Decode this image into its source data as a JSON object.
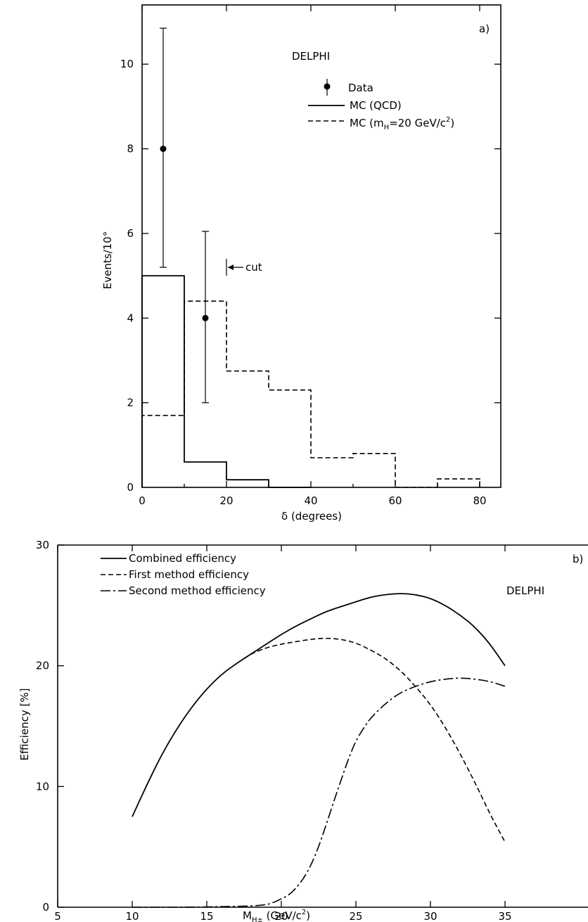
{
  "chart_data": [
    {
      "type": "histogram",
      "experiment_label": "DELPHI",
      "panel_label": "a)",
      "xlabel": "δ (degrees)",
      "ylabel": "Events/10°",
      "xlim": [
        0,
        85
      ],
      "ylim": [
        0,
        11.4
      ],
      "xticks": [
        0,
        20,
        40,
        60,
        80
      ],
      "yticks": [
        2,
        4,
        6,
        8,
        10
      ],
      "legend": {
        "placement": "top-right",
        "entries": [
          {
            "label": "Data",
            "style": "marker"
          },
          {
            "label": "MC (QCD)",
            "style": "solid"
          },
          {
            "label": "MC (m",
            "sub": "H",
            "rest": "=20 GeV/c",
            "sup": "2",
            "end": ")",
            "style": "dashed"
          }
        ]
      },
      "bin_edges": [
        0,
        10,
        20,
        30,
        40,
        50,
        60,
        70,
        80
      ],
      "series": [
        {
          "name": "MC (QCD)",
          "style": "solid",
          "values": [
            5.0,
            0.6,
            0.18,
            0,
            0,
            0,
            0,
            0
          ]
        },
        {
          "name": "MC (mH=20 GeV/c2)",
          "style": "dashed",
          "values": [
            1.7,
            4.4,
            2.75,
            2.3,
            0.7,
            0.8,
            0,
            0.2
          ]
        }
      ],
      "data_points": [
        {
          "x": 5,
          "y": 8.0,
          "err_low": 2.8,
          "err_high": 2.85
        },
        {
          "x": 15,
          "y": 4.0,
          "err_low": 2.0,
          "err_high": 2.05
        }
      ],
      "annotation": {
        "text": "cut",
        "x": 20,
        "y": 5.2
      }
    },
    {
      "type": "line",
      "experiment_label": "DELPHI",
      "panel_label": "b)",
      "xlabel_main": "M",
      "xlabel_sub": "H±",
      "xlabel_rest": " (GeV/c",
      "xlabel_sup": "2",
      "xlabel_end": ")",
      "ylabel": "Efficiency [%]",
      "xlim": [
        5,
        37
      ],
      "ylim": [
        0,
        30
      ],
      "xticks": [
        5,
        10,
        15,
        20,
        25,
        30,
        35
      ],
      "yticks": [
        0,
        10,
        20,
        30
      ],
      "legend": {
        "placement": "top-left",
        "entries": [
          {
            "label": "Combined efficiency",
            "style": "solid"
          },
          {
            "label": "First method efficiency",
            "style": "dashed"
          },
          {
            "label": "Second method efficiency",
            "style": "dashdot"
          }
        ]
      },
      "series": [
        {
          "name": "Combined efficiency",
          "style": "solid",
          "x": [
            10,
            11,
            12,
            13,
            14,
            15,
            16,
            17,
            18,
            19,
            20,
            21,
            22,
            23,
            24,
            25,
            26,
            27,
            28,
            29,
            30,
            31,
            32,
            33,
            34,
            35
          ],
          "y": [
            7.5,
            10.2,
            12.7,
            14.8,
            16.6,
            18.1,
            19.3,
            20.2,
            21.0,
            21.8,
            22.6,
            23.3,
            23.9,
            24.5,
            24.9,
            25.3,
            25.7,
            25.9,
            26.0,
            25.9,
            25.6,
            25.0,
            24.2,
            23.2,
            21.8,
            20.0
          ]
        },
        {
          "name": "First method efficiency",
          "style": "dashed",
          "x": [
            17.5,
            18,
            19,
            20,
            21,
            22,
            23,
            24,
            25,
            26,
            27,
            28,
            29,
            30,
            31,
            32,
            33,
            34,
            35
          ],
          "y": [
            20.6,
            21.0,
            21.5,
            21.8,
            22.0,
            22.2,
            22.3,
            22.2,
            21.9,
            21.3,
            20.6,
            19.6,
            18.3,
            16.8,
            14.9,
            12.7,
            10.3,
            7.7,
            5.4
          ]
        },
        {
          "name": "Second method efficiency",
          "style": "dashdot",
          "x": [
            10,
            12,
            14,
            16,
            18,
            19,
            19.5,
            20,
            20.5,
            21,
            21.5,
            22,
            22.5,
            23,
            23.5,
            24,
            24.5,
            25,
            25.5,
            26,
            27,
            28,
            29,
            30,
            31,
            32,
            33,
            34,
            35
          ],
          "y": [
            0,
            0,
            0,
            0.05,
            0.1,
            0.2,
            0.4,
            0.7,
            1.0,
            1.6,
            2.4,
            3.5,
            5.0,
            6.8,
            8.7,
            10.5,
            12.3,
            13.8,
            14.8,
            15.7,
            16.9,
            17.8,
            18.3,
            18.7,
            18.9,
            19.0,
            18.9,
            18.7,
            18.3
          ]
        }
      ]
    }
  ]
}
